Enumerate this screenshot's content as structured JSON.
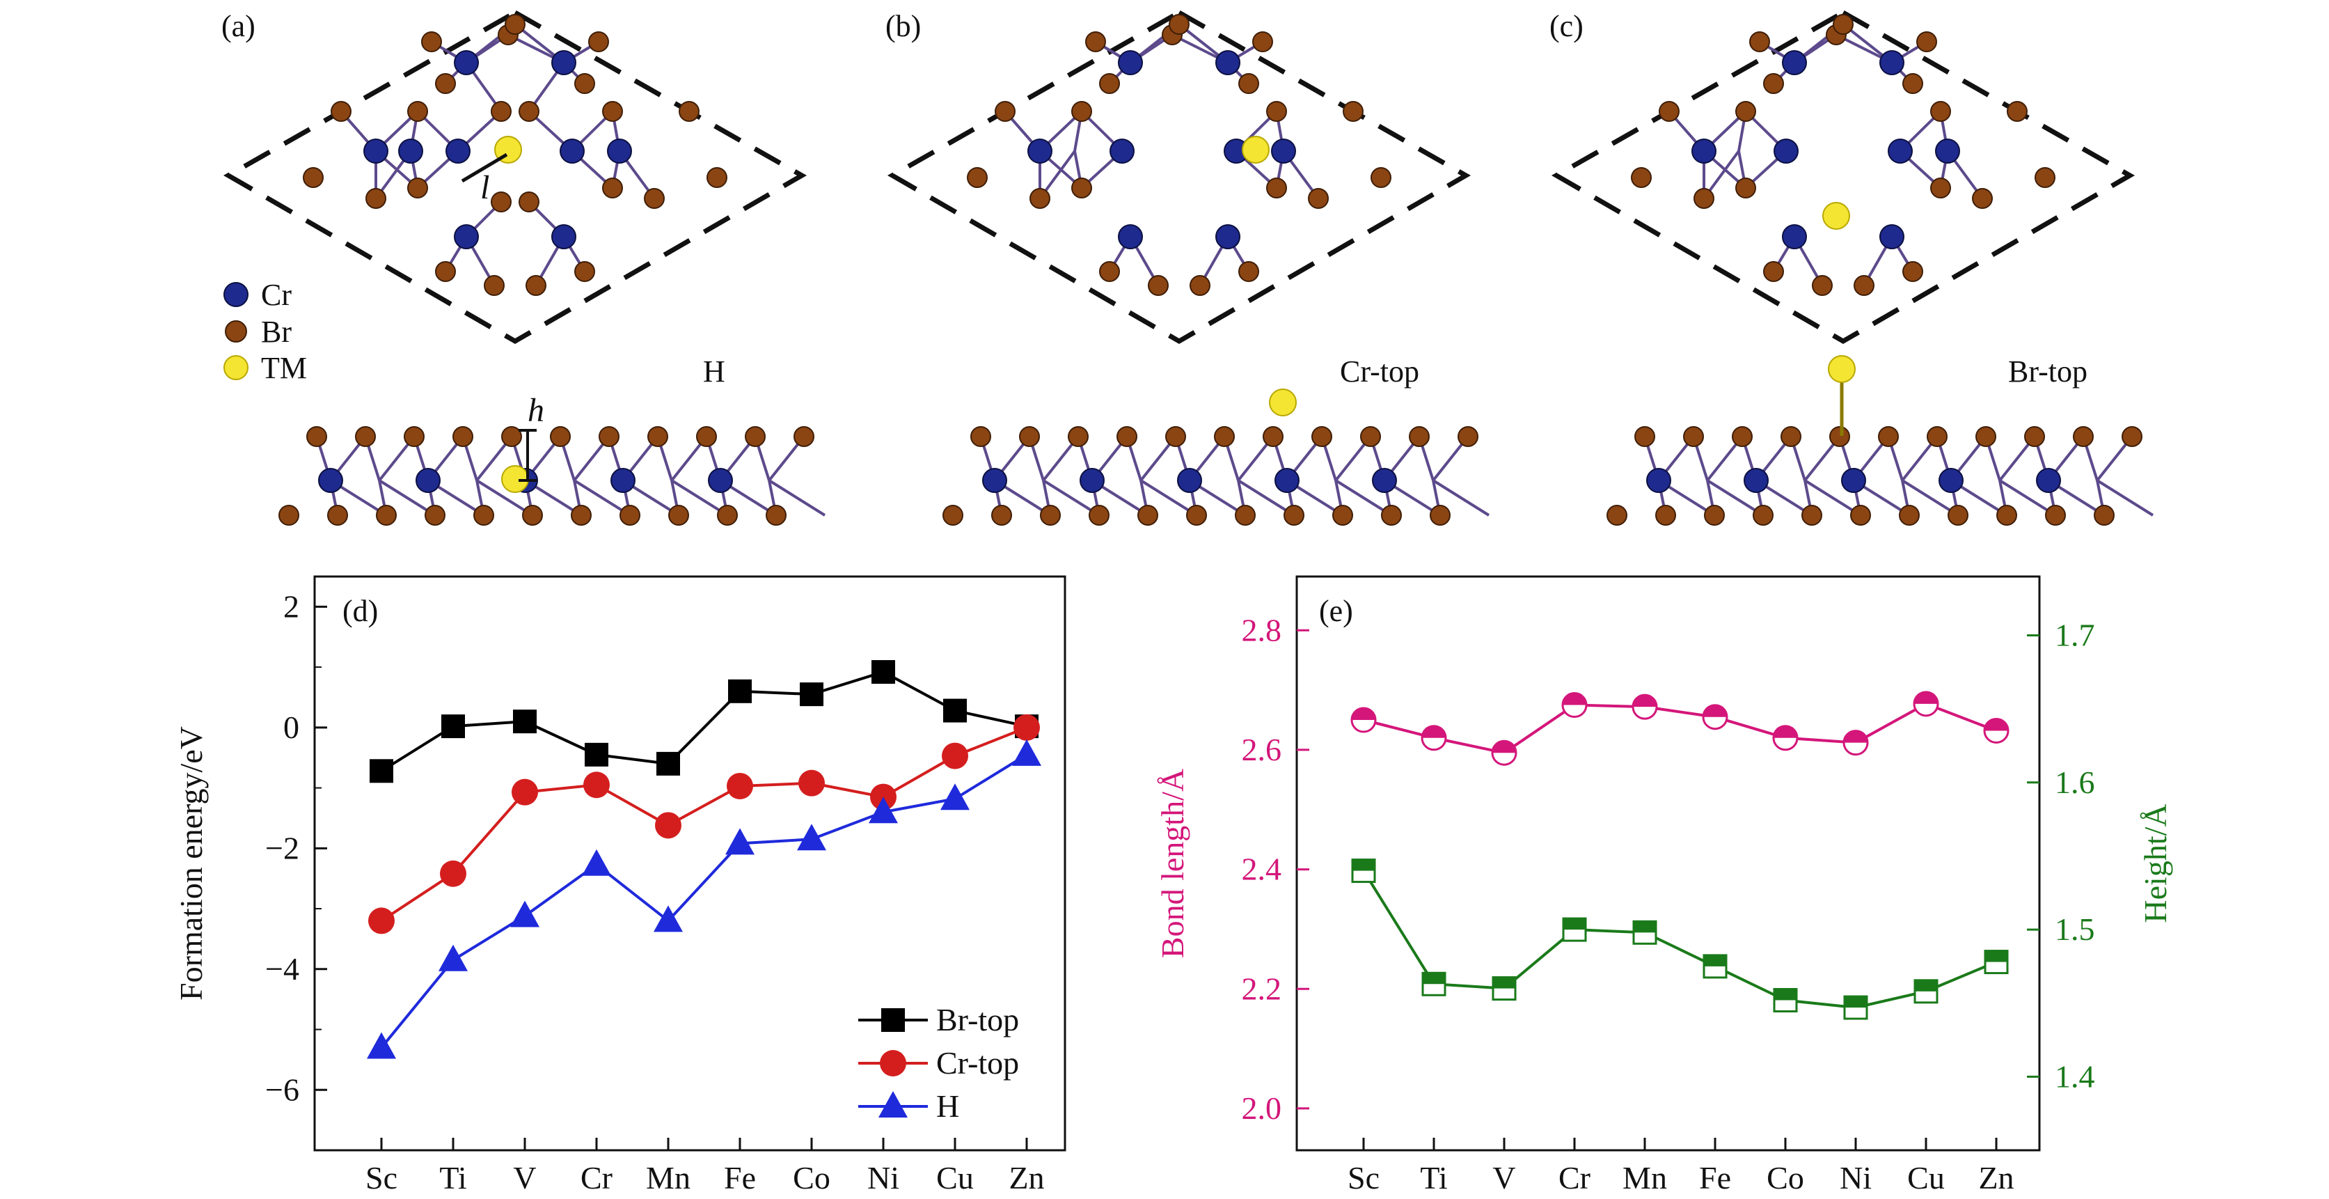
{
  "panels": {
    "a": {
      "label": "(a)",
      "config": "H"
    },
    "b": {
      "label": "(b)",
      "config": "Cr-top"
    },
    "c": {
      "label": "(c)",
      "config": "Br-top"
    },
    "d": {
      "label": "(d)"
    },
    "e": {
      "label": "(e)"
    }
  },
  "structure_legend": [
    {
      "name": "Cr",
      "color": "#1f2a8f"
    },
    {
      "name": "Br",
      "color": "#8b4513"
    },
    {
      "name": "TM",
      "color": "#f5e533"
    }
  ],
  "structure_labels": {
    "bond": "l",
    "height": "h"
  },
  "colors": {
    "cr": "#1f2a8f",
    "br": "#8b4513",
    "tm": "#f5e533",
    "bond": "#5c4a8c",
    "brtop": "#000000",
    "crtop": "#d41e1e",
    "h": "#1f2adb",
    "bond_length": "#d4167a",
    "height": "#1a7a1a"
  },
  "chart_data": [
    {
      "type": "line",
      "panel": "d",
      "categories": [
        "Sc",
        "Ti",
        "V",
        "Cr",
        "Mn",
        "Fe",
        "Co",
        "Ni",
        "Cu",
        "Zn"
      ],
      "ylabel": "Formation energy/eV",
      "ylim": [
        -7,
        2.5
      ],
      "yticks": [
        2,
        0,
        -2,
        -4,
        -6
      ],
      "ytick_labels": [
        "2",
        "0",
        "−2",
        "−4",
        "−6"
      ],
      "legend_position": "bottom-right",
      "series": [
        {
          "name": "Br-top",
          "marker": "square",
          "values": [
            -0.72,
            0.02,
            0.1,
            -0.45,
            -0.6,
            0.6,
            0.55,
            0.92,
            0.28,
            0.02
          ]
        },
        {
          "name": "Cr-top",
          "marker": "circle",
          "values": [
            -3.2,
            -2.42,
            -1.07,
            -0.95,
            -1.62,
            -0.97,
            -0.92,
            -1.15,
            -0.47,
            0.0
          ]
        },
        {
          "name": "H",
          "marker": "triangle",
          "values": [
            -5.3,
            -3.85,
            -3.12,
            -2.27,
            -3.2,
            -1.92,
            -1.85,
            -1.4,
            -1.18,
            -0.45
          ]
        }
      ]
    },
    {
      "type": "line",
      "panel": "e",
      "categories": [
        "Sc",
        "Ti",
        "V",
        "Cr",
        "Mn",
        "Fe",
        "Co",
        "Ni",
        "Cu",
        "Zn"
      ],
      "ylabel_left": "Bond length/Å",
      "ylabel_right": "Height/Å",
      "ylim_left": [
        1.93,
        2.89
      ],
      "yticks_left": [
        2.0,
        2.2,
        2.4,
        2.6,
        2.8
      ],
      "ytick_labels_left": [
        "2.0",
        "2.2",
        "2.4",
        "2.6",
        "2.8"
      ],
      "ylim_right": [
        1.35,
        1.74
      ],
      "yticks_right": [
        1.4,
        1.5,
        1.6,
        1.7
      ],
      "ytick_labels_right": [
        "1.4",
        "1.5",
        "1.6",
        "1.7"
      ],
      "series": [
        {
          "name": "",
          "axis": "left",
          "marker": "half-circle",
          "values": [
            2.65,
            2.62,
            2.595,
            2.675,
            2.672,
            2.655,
            2.62,
            2.612,
            2.677,
            2.632
          ]
        },
        {
          "name": "",
          "axis": "right",
          "marker": "half-square",
          "values": [
            1.54,
            1.463,
            1.46,
            1.5,
            1.498,
            1.475,
            1.452,
            1.447,
            1.458,
            1.478
          ]
        }
      ]
    }
  ]
}
